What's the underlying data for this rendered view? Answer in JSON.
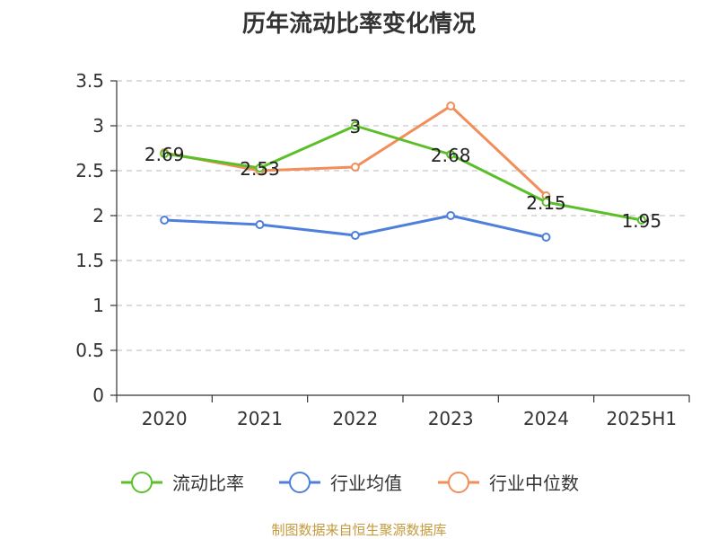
{
  "source_text": "制图数据来自恒生聚源数据库",
  "chart_data": {
    "type": "line",
    "title": "历年流动比率变化情况",
    "categories": [
      "2020",
      "2021",
      "2022",
      "2023",
      "2024",
      "2025H1"
    ],
    "ylim": [
      0,
      3.5
    ],
    "yticks": [
      "0",
      "0.5",
      "1",
      "1.5",
      "2",
      "2.5",
      "3",
      "3.5"
    ],
    "grid": true,
    "legend_position": "bottom",
    "series": [
      {
        "name": "流动比率",
        "color": "#5cbf2a",
        "values": [
          2.69,
          2.53,
          3,
          2.68,
          2.15,
          1.95
        ],
        "labels": [
          "2.69",
          "2.53",
          "3",
          "2.68",
          "2.15",
          "1.95"
        ]
      },
      {
        "name": "行业均值",
        "color": "#4d7fdb",
        "values": [
          1.95,
          1.9,
          1.78,
          2.0,
          1.76,
          null
        ]
      },
      {
        "name": "行业中位数",
        "color": "#f28e5a",
        "values": [
          2.7,
          2.5,
          2.54,
          3.22,
          2.22,
          null
        ]
      }
    ]
  }
}
